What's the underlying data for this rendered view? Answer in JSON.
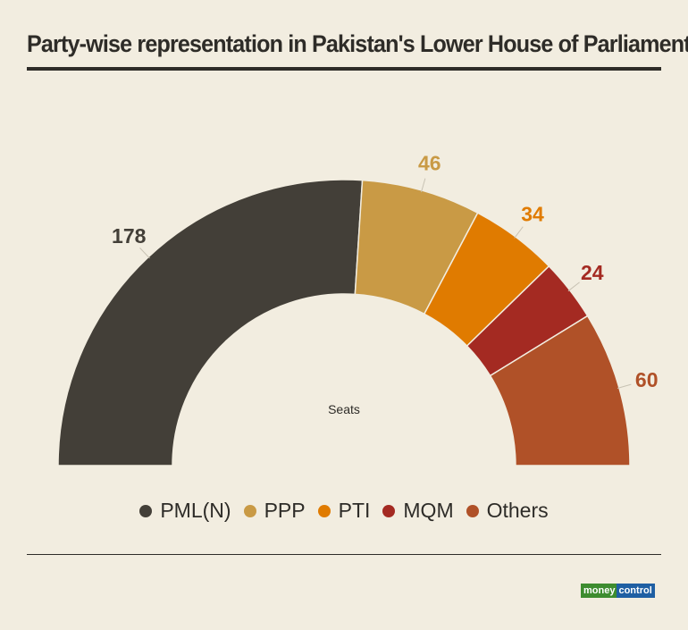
{
  "title": "Party-wise representation in Pakistan's Lower House of Parliament",
  "chart_data": {
    "type": "pie",
    "variant": "half-donut",
    "center_label": "Seats",
    "categories": [
      "PML(N)",
      "PPP",
      "PTI",
      "MQM",
      "Others"
    ],
    "values": [
      178,
      46,
      34,
      24,
      60
    ],
    "colors": [
      "#433f38",
      "#c99a45",
      "#e07b00",
      "#a42a22",
      "#b05128"
    ],
    "legend_position": "bottom"
  },
  "logo": {
    "part1": "money",
    "part2": "control"
  }
}
